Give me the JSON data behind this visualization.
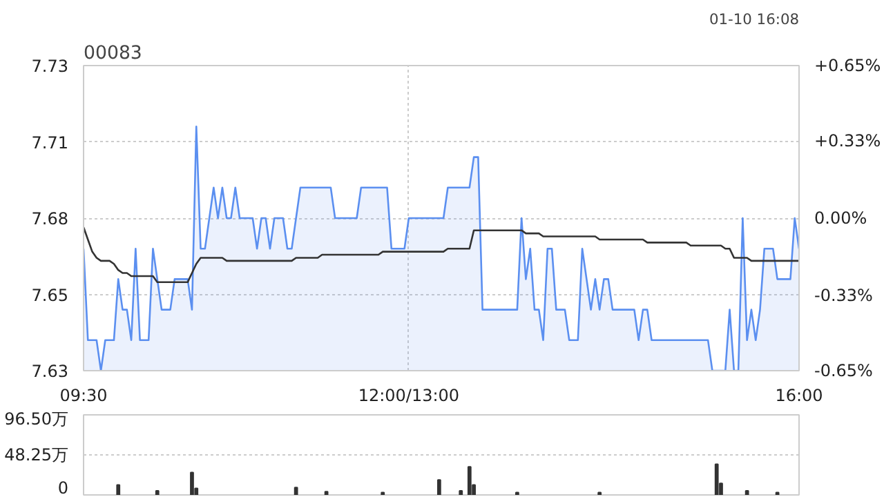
{
  "chart_data": [
    {
      "type": "line",
      "title": "00083",
      "annotations": [
        "01-10 16:08"
      ],
      "categories": [
        "09:30",
        null,
        null,
        null,
        null,
        null,
        null,
        null,
        null,
        null,
        null,
        null,
        null,
        null,
        null,
        null,
        null,
        null,
        null,
        null,
        null,
        null,
        null,
        null,
        null,
        null,
        null,
        null,
        null,
        null,
        null,
        null,
        null,
        null,
        null,
        null,
        null,
        null,
        null,
        null,
        null,
        null,
        null,
        null,
        null,
        null,
        null,
        null,
        null,
        null,
        null,
        null,
        null,
        null,
        null,
        null,
        null,
        null,
        null,
        null,
        null,
        null,
        null,
        null,
        null,
        null,
        null,
        null,
        null,
        null,
        null,
        null,
        null,
        null,
        null,
        "12:00/13:00",
        null,
        null,
        null,
        null,
        null,
        null,
        null,
        null,
        null,
        null,
        null,
        null,
        null,
        null,
        null,
        null,
        null,
        null,
        null,
        null,
        null,
        null,
        null,
        null,
        null,
        null,
        null,
        null,
        null,
        null,
        null,
        null,
        null,
        null,
        null,
        null,
        null,
        null,
        null,
        null,
        null,
        null,
        null,
        null,
        null,
        null,
        null,
        null,
        null,
        null,
        null,
        null,
        null,
        null,
        null,
        null,
        null,
        null,
        null,
        null,
        null,
        null,
        null,
        null,
        null,
        null,
        null,
        null,
        null,
        null,
        null,
        null,
        null,
        null,
        null,
        null,
        null,
        null,
        null,
        null,
        null,
        null,
        null,
        null,
        null,
        null,
        null,
        null,
        null,
        "16:00"
      ],
      "ylim": [
        7.63,
        7.73
      ],
      "yticks": [
        7.63,
        {
          "value": 7.655,
          "label": "7.65"
        },
        7.68,
        {
          "value": 7.705,
          "label": "7.71"
        },
        7.73
      ],
      "y2lim": [
        -0.65,
        0.65
      ],
      "y2ticks": [
        {
          "value": -0.65,
          "label": "-0.65%"
        },
        {
          "value": -0.33,
          "label": "-0.33%"
        },
        {
          "value": 0,
          "label": "0.00%"
        },
        {
          "value": 0.33,
          "label": "+0.33%"
        },
        {
          "value": 0.65,
          "label": "+0.65%"
        }
      ],
      "grid": true,
      "series": [
        {
          "type": "area",
          "color": "#5b8ff0",
          "values": [
            7.67,
            7.64,
            7.64,
            7.64,
            7.63,
            7.64,
            7.64,
            7.64,
            7.66,
            7.65,
            7.65,
            7.64,
            7.67,
            7.64,
            7.64,
            7.64,
            7.67,
            7.66,
            7.65,
            7.65,
            7.65,
            7.66,
            7.66,
            7.66,
            7.66,
            7.65,
            7.71,
            7.67,
            7.67,
            7.68,
            7.69,
            7.68,
            7.69,
            7.68,
            7.68,
            7.69,
            7.68,
            7.68,
            7.68,
            7.68,
            7.67,
            7.68,
            7.68,
            7.67,
            7.68,
            7.68,
            7.68,
            7.67,
            7.67,
            7.68,
            7.69,
            7.69,
            7.69,
            7.69,
            7.69,
            7.69,
            7.69,
            7.69,
            7.68,
            7.68,
            7.68,
            7.68,
            7.68,
            7.68,
            7.69,
            7.69,
            7.69,
            7.69,
            7.69,
            7.69,
            7.69,
            7.67,
            7.67,
            7.67,
            7.67,
            7.68,
            7.68,
            7.68,
            7.68,
            7.68,
            7.68,
            7.68,
            7.68,
            7.68,
            7.69,
            7.69,
            7.69,
            7.69,
            7.69,
            7.69,
            7.7,
            7.7,
            7.65,
            7.65,
            7.65,
            7.65,
            7.65,
            7.65,
            7.65,
            7.65,
            7.65,
            7.68,
            7.66,
            7.67,
            7.65,
            7.65,
            7.64,
            7.67,
            7.67,
            7.65,
            7.65,
            7.65,
            7.64,
            7.64,
            7.64,
            7.67,
            7.66,
            7.65,
            7.66,
            7.65,
            7.66,
            7.66,
            7.65,
            7.65,
            7.65,
            7.65,
            7.65,
            7.65,
            7.64,
            7.65,
            7.65,
            7.64,
            7.64,
            7.64,
            7.64,
            7.64,
            7.64,
            7.64,
            7.64,
            7.64,
            7.64,
            7.64,
            7.64,
            7.64,
            7.64,
            7.63,
            7.63,
            7.63,
            7.63,
            7.65,
            7.63,
            7.63,
            7.68,
            7.64,
            7.65,
            7.64,
            7.65,
            7.67,
            7.67,
            7.67,
            7.66,
            7.66,
            7.66,
            7.66,
            7.68,
            7.67
          ]
        },
        {
          "type": "line",
          "color": "#333333",
          "values": [
            7.677,
            7.673,
            7.669,
            7.667,
            7.666,
            7.666,
            7.666,
            7.665,
            7.663,
            7.662,
            7.662,
            7.661,
            7.661,
            7.661,
            7.661,
            7.661,
            7.661,
            7.659,
            7.659,
            7.659,
            7.659,
            7.659,
            7.659,
            7.659,
            7.659,
            7.662,
            7.665,
            7.667,
            7.667,
            7.667,
            7.667,
            7.667,
            7.667,
            7.666,
            7.666,
            7.666,
            7.666,
            7.666,
            7.666,
            7.666,
            7.666,
            7.666,
            7.666,
            7.666,
            7.666,
            7.666,
            7.666,
            7.666,
            7.666,
            7.667,
            7.667,
            7.667,
            7.667,
            7.667,
            7.667,
            7.668,
            7.668,
            7.668,
            7.668,
            7.668,
            7.668,
            7.668,
            7.668,
            7.668,
            7.668,
            7.668,
            7.668,
            7.668,
            7.668,
            7.669,
            7.669,
            7.669,
            7.669,
            7.669,
            7.669,
            7.669,
            7.669,
            7.669,
            7.669,
            7.669,
            7.669,
            7.669,
            7.669,
            7.669,
            7.67,
            7.67,
            7.67,
            7.67,
            7.67,
            7.67,
            7.676,
            7.676,
            7.676,
            7.676,
            7.676,
            7.676,
            7.676,
            7.676,
            7.676,
            7.676,
            7.676,
            7.676,
            7.675,
            7.675,
            7.675,
            7.675,
            7.674,
            7.674,
            7.674,
            7.674,
            7.674,
            7.674,
            7.674,
            7.674,
            7.674,
            7.674,
            7.674,
            7.674,
            7.674,
            7.673,
            7.673,
            7.673,
            7.673,
            7.673,
            7.673,
            7.673,
            7.673,
            7.673,
            7.673,
            7.673,
            7.672,
            7.672,
            7.672,
            7.672,
            7.672,
            7.672,
            7.672,
            7.672,
            7.672,
            7.672,
            7.671,
            7.671,
            7.671,
            7.671,
            7.671,
            7.671,
            7.671,
            7.671,
            7.67,
            7.67,
            7.667,
            7.667,
            7.667,
            7.667,
            7.666,
            7.666,
            7.666,
            7.666,
            7.666,
            7.666,
            7.666,
            7.666,
            7.666,
            7.666,
            7.666,
            7.666
          ]
        }
      ]
    },
    {
      "type": "bar",
      "color": "#333333",
      "tick_labels": "y",
      "grid": "y",
      "categories": [
        null,
        null,
        null,
        null,
        null,
        null,
        null,
        null,
        null,
        null,
        null,
        null,
        null,
        null,
        null,
        null,
        null,
        null,
        null,
        null,
        null,
        null,
        null,
        null,
        null,
        null,
        null,
        null,
        null,
        null,
        null,
        null,
        null,
        null,
        null,
        null,
        null,
        null,
        null,
        null,
        null,
        null,
        null,
        null,
        null,
        null,
        null,
        null,
        null,
        null,
        null,
        null,
        null,
        null,
        null,
        null,
        null,
        null,
        null,
        null,
        null,
        null,
        null,
        null,
        null,
        null,
        null,
        null,
        null,
        null,
        null,
        null,
        null,
        null,
        null,
        null,
        null,
        null,
        null,
        null,
        null,
        null,
        null,
        null,
        null,
        null,
        null,
        null,
        null,
        null,
        null,
        null,
        null,
        null,
        null,
        null,
        null,
        null,
        null,
        null,
        null,
        null,
        null,
        null,
        null,
        null,
        null,
        null,
        null,
        null,
        null,
        null,
        null,
        null,
        null,
        null,
        null,
        null,
        null,
        null,
        null,
        null,
        null,
        null,
        null,
        null,
        null,
        null,
        null,
        null,
        null,
        null,
        null,
        null,
        null,
        null,
        null,
        null,
        null,
        null,
        null,
        null,
        null,
        null,
        null,
        null,
        null,
        null,
        null,
        null,
        null,
        null,
        null,
        null,
        null,
        null,
        null,
        null,
        null,
        null,
        null,
        null,
        null,
        null,
        null,
        null
      ],
      "ylim": [
        0,
        96.5
      ],
      "yticks": [
        0,
        {
          "value": 48.25,
          "label": "48.25万"
        },
        {
          "value": 96.5,
          "label": "96.50万"
        }
      ],
      "values": [
        null,
        null,
        null,
        null,
        null,
        null,
        null,
        null,
        12,
        null,
        null,
        null,
        null,
        null,
        null,
        null,
        null,
        5,
        null,
        null,
        null,
        null,
        null,
        null,
        null,
        27,
        8,
        null,
        null,
        null,
        null,
        null,
        null,
        null,
        null,
        null,
        null,
        null,
        null,
        null,
        null,
        null,
        null,
        null,
        null,
        null,
        null,
        null,
        null,
        9,
        null,
        null,
        null,
        null,
        null,
        null,
        4,
        null,
        null,
        null,
        null,
        null,
        null,
        null,
        null,
        null,
        null,
        null,
        null,
        3,
        null,
        null,
        null,
        null,
        null,
        null,
        null,
        null,
        null,
        null,
        null,
        null,
        18,
        null,
        null,
        null,
        null,
        5,
        null,
        34,
        12,
        null,
        null,
        null,
        null,
        null,
        null,
        null,
        null,
        null,
        3,
        null,
        null,
        null,
        null,
        null,
        null,
        null,
        null,
        null,
        null,
        null,
        null,
        null,
        null,
        null,
        null,
        null,
        null,
        3,
        null,
        null,
        null,
        null,
        null,
        null,
        null,
        null,
        null,
        null,
        null,
        null,
        null,
        null,
        null,
        null,
        null,
        null,
        null,
        null,
        null,
        null,
        null,
        null,
        null,
        null,
        37,
        14,
        null,
        null,
        null,
        null,
        null,
        5,
        null,
        null,
        null,
        null,
        null,
        null,
        3,
        null,
        null,
        null,
        null,
        null
      ]
    }
  ]
}
